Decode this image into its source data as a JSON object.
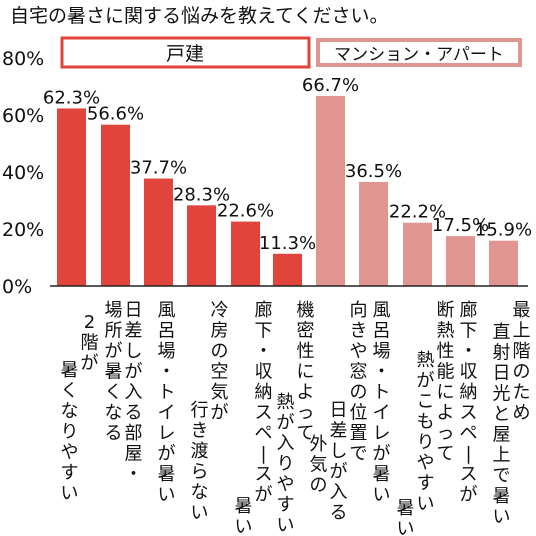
{
  "chart_data": {
    "type": "bar",
    "title": "自宅の暑さに関する悩みを教えてください。",
    "ylim": [
      0,
      80
    ],
    "yticks": [
      "0%",
      "20%",
      "40%",
      "60%",
      "80%"
    ],
    "grid": false,
    "legend_placement": "top",
    "series": [
      {
        "name": "戸建",
        "color": "#e0443a",
        "categories": [
          "2階が暑くなりやすい",
          "日差しが入る部屋・場所が暑くなる",
          "風呂場・トイレが暑い",
          "冷房の空気が行き渡らない",
          "廊下・収納スペースが暑い",
          "機密性によって熱が入りやすい"
        ],
        "values": [
          62.3,
          56.6,
          37.7,
          28.3,
          22.6,
          11.3
        ],
        "value_labels": [
          "62.3%",
          "56.6%",
          "37.7%",
          "28.3%",
          "22.6%",
          "11.3%"
        ]
      },
      {
        "name": "マンション・アパート",
        "color": "#e09590",
        "categories": [
          "外気の日差しが入る向きや窓の位置で",
          "風呂場・トイレが暑い",
          "断熱性能によって熱がこもりやすい",
          "廊下・収納スペースが暑い",
          "最上階のため直射日光と屋上で暑い"
        ],
        "values": [
          66.7,
          36.5,
          22.2,
          17.5,
          15.9
        ],
        "value_labels": [
          "66.7%",
          "36.5%",
          "22.2%",
          "17.5%",
          "15.9%"
        ]
      }
    ]
  }
}
